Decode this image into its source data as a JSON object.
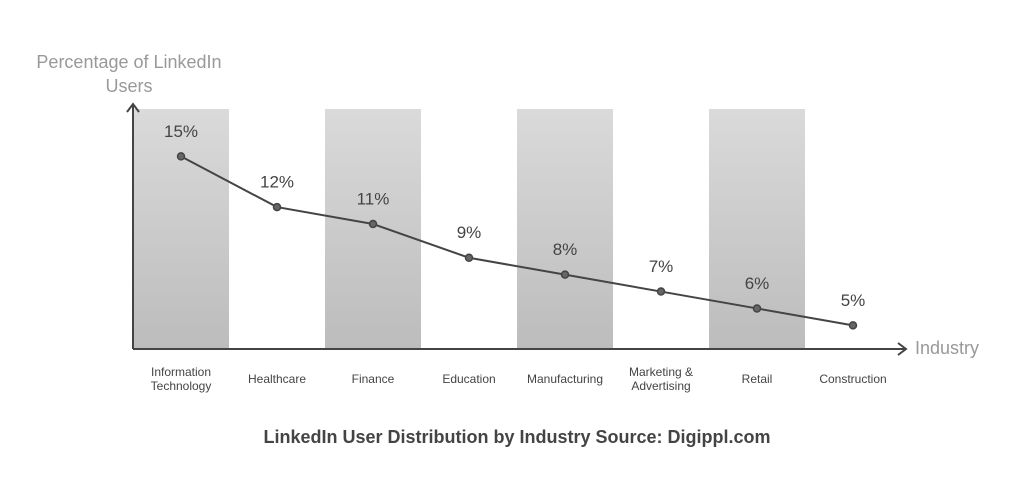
{
  "chart_data": {
    "type": "line",
    "title": "LinkedIn User Distribution by Industry Source: Digippl.com",
    "x_label": "Industry",
    "y_label": "Percentage of LinkedIn Users",
    "categories": [
      "Information Technology",
      "Healthcare",
      "Finance",
      "Education",
      "Manufacturing",
      "Marketing & Advertising",
      "Retail",
      "Construction"
    ],
    "values": [
      15,
      12,
      11,
      9,
      8,
      7,
      6,
      5
    ],
    "value_labels": [
      "15%",
      "12%",
      "11%",
      "9%",
      "8%",
      "7%",
      "6%",
      "5%"
    ],
    "color": "#444444",
    "ylim": [
      3.6,
      18.1
    ]
  }
}
